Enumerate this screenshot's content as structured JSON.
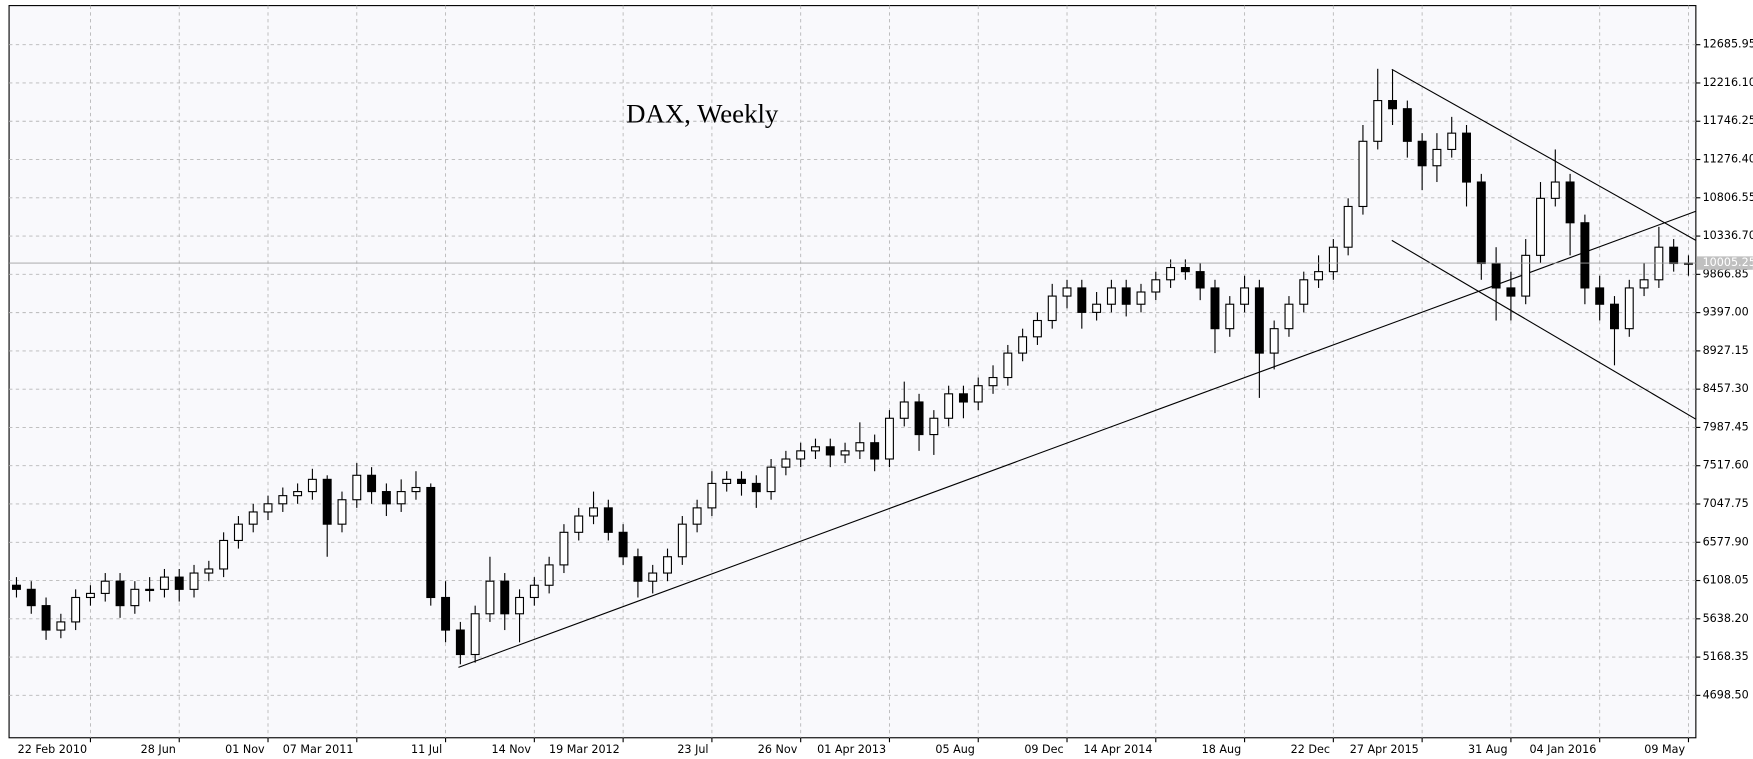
{
  "chart_data": {
    "type": "candlestick",
    "title": "DAX, Weekly",
    "categories": [
      null,
      null,
      null,
      null,
      null,
      "22 Feb 2010",
      null,
      null,
      null,
      null,
      null,
      "28 Jun",
      null,
      null,
      null,
      null,
      null,
      "01 Nov",
      null,
      null,
      null,
      null,
      null,
      "07 Mar 2011",
      null,
      null,
      null,
      null,
      null,
      "11 Jul",
      null,
      null,
      null,
      null,
      null,
      "14 Nov",
      null,
      null,
      null,
      null,
      null,
      "19 Mar 2012",
      null,
      null,
      null,
      null,
      null,
      "23 Jul",
      null,
      null,
      null,
      null,
      null,
      "26 Nov",
      null,
      null,
      null,
      null,
      null,
      "01 Apr 2013",
      null,
      null,
      null,
      null,
      null,
      "05 Aug",
      null,
      null,
      null,
      null,
      null,
      "09 Dec",
      null,
      null,
      null,
      null,
      null,
      "14 Apr 2014",
      null,
      null,
      null,
      null,
      null,
      "18 Aug",
      null,
      null,
      null,
      null,
      null,
      "22 Dec",
      null,
      null,
      null,
      null,
      null,
      "27 Apr 2015",
      null,
      null,
      null,
      null,
      null,
      "31 Aug",
      null,
      null,
      null,
      null,
      null,
      "04 Jan 2016",
      null,
      null,
      null,
      null,
      null,
      "09 May"
    ],
    "open": [
      6050,
      6000,
      5800,
      5500,
      5600,
      5900,
      5950,
      6100,
      5800,
      6000,
      6000,
      6150,
      6000,
      6200,
      6250,
      6600,
      6800,
      6950,
      7050,
      7150,
      7200,
      7350,
      6800,
      7100,
      7400,
      7200,
      7050,
      7200,
      7250,
      5900,
      5500,
      5200,
      5700,
      6100,
      5700,
      5900,
      6050,
      6300,
      6700,
      6900,
      7000,
      6700,
      6400,
      6100,
      6200,
      6400,
      6800,
      7000,
      7300,
      7350,
      7300,
      7200,
      7500,
      7600,
      7700,
      7750,
      7650,
      7700,
      7800,
      7600,
      8100,
      8300,
      7900,
      8100,
      8400,
      8300,
      8500,
      8600,
      8900,
      9100,
      9300,
      9600,
      9700,
      9400,
      9500,
      9700,
      9500,
      9650,
      9800,
      9950,
      9900,
      9700,
      9200,
      9500,
      9700,
      8900,
      9200,
      9500,
      9800,
      9900,
      10200,
      10700,
      11500,
      12000,
      11900,
      11500,
      11200,
      11400,
      11600,
      11000,
      10000,
      9700,
      9600,
      10100,
      10800,
      11000,
      10500,
      9700,
      9500,
      9200,
      9700,
      9800,
      10200,
      10000
    ],
    "high": [
      6150,
      6100,
      5900,
      5700,
      6000,
      6050,
      6200,
      6200,
      6100,
      6150,
      6250,
      6250,
      6300,
      6350,
      6700,
      6900,
      7050,
      7150,
      7250,
      7300,
      7480,
      7400,
      7200,
      7550,
      7500,
      7300,
      7350,
      7450,
      7300,
      6100,
      5600,
      5800,
      6400,
      6200,
      6000,
      6150,
      6400,
      6800,
      7000,
      7200,
      7100,
      6800,
      6500,
      6300,
      6500,
      6900,
      7100,
      7450,
      7450,
      7450,
      7400,
      7600,
      7700,
      7800,
      7850,
      7850,
      7800,
      8050,
      7900,
      8200,
      8550,
      8400,
      8200,
      8500,
      8500,
      8600,
      8750,
      9000,
      9200,
      9400,
      9750,
      9800,
      9800,
      9650,
      9800,
      9800,
      9750,
      9900,
      10050,
      10050,
      10000,
      9800,
      9600,
      9850,
      9800,
      9300,
      9600,
      9900,
      10100,
      10300,
      10800,
      11700,
      12390,
      12380,
      12000,
      11600,
      11600,
      11800,
      11700,
      11100,
      10200,
      9900,
      10300,
      11000,
      11400,
      11100,
      10600,
      9850,
      9600,
      9800,
      10000,
      10450,
      10300,
      10100
    ],
    "low": [
      5900,
      5700,
      5380,
      5400,
      5500,
      5800,
      5850,
      5650,
      5700,
      5850,
      5900,
      5850,
      5900,
      6100,
      6150,
      6500,
      6700,
      6850,
      6950,
      7050,
      7100,
      6400,
      6700,
      7000,
      7050,
      6900,
      6950,
      7100,
      5800,
      5350,
      5080,
      5100,
      5600,
      5500,
      5350,
      5800,
      5950,
      6200,
      6600,
      6800,
      6600,
      6300,
      5900,
      5950,
      6100,
      6300,
      6700,
      6900,
      7200,
      7150,
      7000,
      7100,
      7400,
      7500,
      7600,
      7500,
      7550,
      7600,
      7450,
      7500,
      8000,
      7700,
      7650,
      8000,
      8100,
      8200,
      8400,
      8500,
      8800,
      9000,
      9200,
      9450,
      9200,
      9300,
      9400,
      9350,
      9400,
      9550,
      9700,
      9800,
      9550,
      8900,
      9100,
      9400,
      8350,
      8700,
      9100,
      9400,
      9700,
      9800,
      10100,
      10600,
      11400,
      11700,
      11300,
      10900,
      11000,
      11300,
      10700,
      9800,
      9300,
      9300,
      9500,
      10000,
      10700,
      10100,
      9500,
      9300,
      8750,
      9100,
      9600,
      9700,
      9900,
      9850
    ],
    "close": [
      6000,
      5800,
      5500,
      5600,
      5900,
      5950,
      6100,
      5800,
      6000,
      6000,
      6150,
      6000,
      6200,
      6250,
      6600,
      6800,
      6950,
      7050,
      7150,
      7200,
      7350,
      6800,
      7100,
      7400,
      7200,
      7050,
      7200,
      7250,
      5900,
      5500,
      5200,
      5700,
      6100,
      5700,
      5900,
      6050,
      6300,
      6700,
      6900,
      7000,
      6700,
      6400,
      6100,
      6200,
      6400,
      6800,
      7000,
      7300,
      7350,
      7300,
      7200,
      7500,
      7600,
      7700,
      7750,
      7650,
      7700,
      7800,
      7600,
      8100,
      8300,
      7900,
      8100,
      8400,
      8300,
      8500,
      8600,
      8900,
      9100,
      9300,
      9600,
      9700,
      9400,
      9500,
      9700,
      9500,
      9650,
      9800,
      9950,
      9900,
      9700,
      9200,
      9500,
      9700,
      8900,
      9200,
      9500,
      9800,
      9900,
      10200,
      10700,
      11500,
      12000,
      11900,
      11500,
      11200,
      11400,
      11600,
      11000,
      10000,
      9700,
      9600,
      10100,
      10800,
      11000,
      10500,
      9700,
      9500,
      9200,
      9700,
      9800,
      10200,
      10000,
      10005.25
    ],
    "up_color": "#ffffff",
    "down_color": "#000000",
    "current_price": {
      "value": 10005.25,
      "label": "10005.25"
    },
    "ylim": [
      4178,
      13166
    ],
    "yticks": [
      {
        "value": 4698.5,
        "label": "4698.50"
      },
      5168.35,
      {
        "value": 5638.2,
        "label": "5638.20"
      },
      6108.05,
      {
        "value": 6577.9,
        "label": "6577.90"
      },
      7047.75,
      {
        "value": 7517.6,
        "label": "7517.60"
      },
      {
        "value": 7987.45,
        "label": "7987.45"
      },
      {
        "value": 8457.3,
        "label": "8457.30"
      },
      8927.15,
      {
        "value": 9397,
        "label": "9397.00"
      },
      {
        "value": 9866.85,
        "label": "9866.85"
      },
      {
        "value": 10336.7,
        "label": "10336.70"
      },
      10806.55,
      {
        "value": 11276.4,
        "label": "11276.40"
      },
      11746.25,
      {
        "value": 12216.1,
        "label": "12216.10"
      },
      12685.95
    ],
    "grid": true
  }
}
